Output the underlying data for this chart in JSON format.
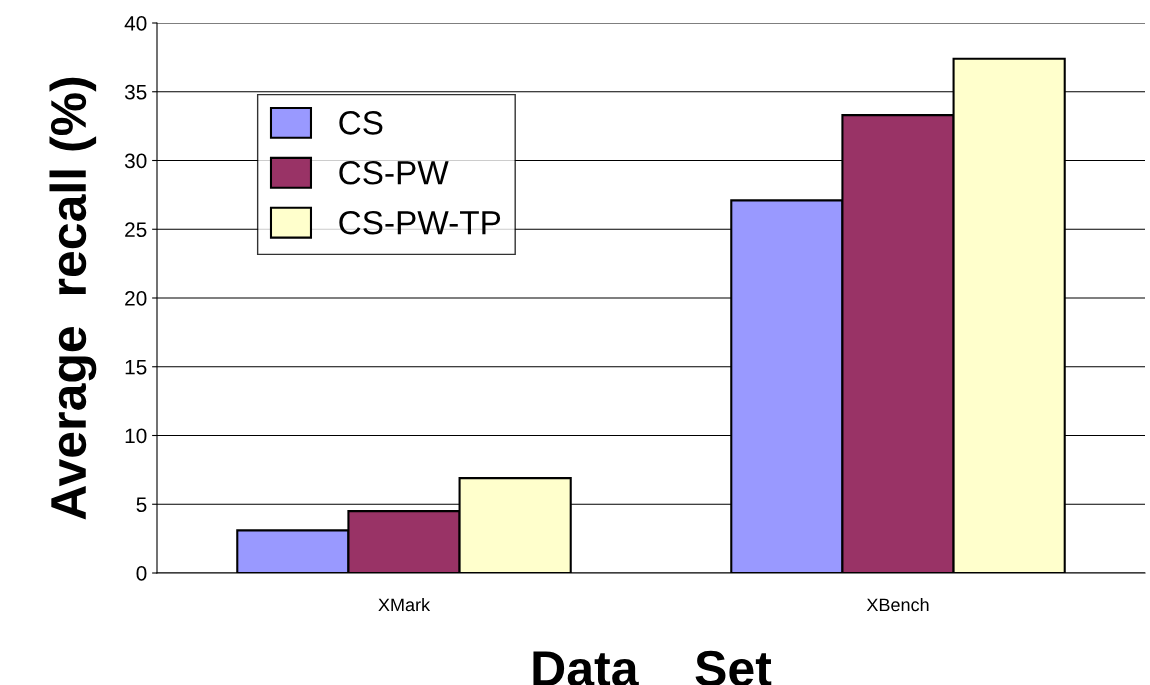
{
  "chart_data": {
    "type": "bar",
    "xlabel": "Data    Set",
    "ylabel": "Average  recall (%)",
    "categories": [
      "XMark",
      "XBench"
    ],
    "series": [
      {
        "name": "CS",
        "color": "#9999ff",
        "values": [
          3.1,
          27.1
        ]
      },
      {
        "name": "CS-PW",
        "color": "#993366",
        "values": [
          4.5,
          33.3
        ]
      },
      {
        "name": "CS-PW-TP",
        "color": "#ffffcc",
        "values": [
          6.9,
          37.4
        ]
      }
    ],
    "ylim": [
      0,
      40
    ],
    "yticks": [
      0,
      5,
      10,
      15,
      20,
      25,
      30,
      35,
      40
    ],
    "grid": "y",
    "legend": "top left"
  }
}
